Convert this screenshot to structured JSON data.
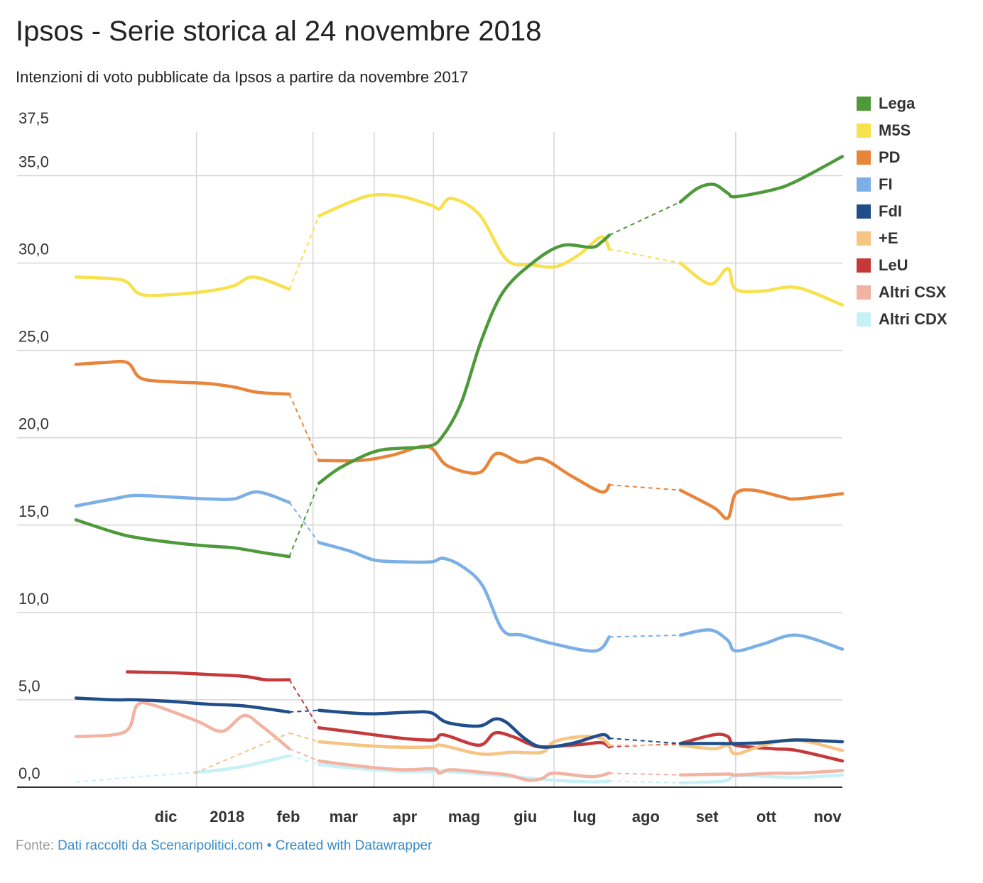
{
  "header": {
    "title": "Ipsos - Serie storica al 24 novembre 2018",
    "subtitle": "Intenzioni di voto pubblicate da Ipsos a partire da novembre 2017"
  },
  "footer": {
    "source_prefix": "Fonte:",
    "source_link": "Dati raccolti da Scenaripolitici.com",
    "separator": "•",
    "credit_link": "Created with Datawrapper"
  },
  "chart_data": {
    "type": "line",
    "title": "Ipsos - Serie storica al 24 novembre 2018",
    "subtitle": "Intenzioni di voto pubblicate da Ipsos a partire da novembre 2017",
    "xlabel": "",
    "ylabel": "",
    "ylim": [
      0,
      37.5
    ],
    "xlim": [
      "2017-11-01",
      "2018-11-24"
    ],
    "y_ticks": [
      {
        "value": 0,
        "label": "0,0"
      },
      {
        "value": 5,
        "label": "5,0"
      },
      {
        "value": 10,
        "label": "10,0"
      },
      {
        "value": 15,
        "label": "15,0"
      },
      {
        "value": 20,
        "label": "20,0"
      },
      {
        "value": 25,
        "label": "25,0"
      },
      {
        "value": 30,
        "label": "30,0"
      },
      {
        "value": 35,
        "label": "35,0"
      },
      {
        "value": 37.5,
        "label": "37,5"
      }
    ],
    "x_ticks": [
      {
        "date": "2017-12-01",
        "label": "dic"
      },
      {
        "date": "2018-01-01",
        "label": "2018"
      },
      {
        "date": "2018-02-01",
        "label": "feb"
      },
      {
        "date": "2018-03-01",
        "label": "mar"
      },
      {
        "date": "2018-04-01",
        "label": "apr"
      },
      {
        "date": "2018-05-01",
        "label": "mag"
      },
      {
        "date": "2018-06-01",
        "label": "giu"
      },
      {
        "date": "2018-07-01",
        "label": "lug"
      },
      {
        "date": "2018-08-01",
        "label": "ago"
      },
      {
        "date": "2018-09-01",
        "label": "set"
      },
      {
        "date": "2018-10-01",
        "label": "ott"
      },
      {
        "date": "2018-11-01",
        "label": "nov"
      }
    ],
    "vertical_grid_dates": [
      "2018-01-01",
      "2018-03-01",
      "2018-04-01",
      "2018-05-01",
      "2018-07-01",
      "2018-10-01"
    ],
    "grid": true,
    "legend_position": "right",
    "series": [
      {
        "name": "Lega",
        "color": "#4e9a3a",
        "points": [
          [
            "2017-11-01",
            15.3
          ],
          [
            "2017-11-20",
            14.6
          ],
          [
            "2017-12-01",
            14.3
          ],
          [
            "2017-12-20",
            14.0
          ],
          [
            "2018-01-07",
            13.8
          ],
          [
            "2018-01-20",
            13.7
          ],
          [
            "2018-02-05",
            13.4
          ],
          [
            "2018-02-17",
            13.2
          ],
          null,
          [
            "2018-03-04",
            17.4
          ],
          [
            "2018-03-15",
            18.3
          ],
          [
            "2018-04-01",
            19.2
          ],
          [
            "2018-04-14",
            19.4
          ],
          [
            "2018-04-28",
            19.5
          ],
          [
            "2018-05-05",
            20.0
          ],
          [
            "2018-05-15",
            22.0
          ],
          [
            "2018-05-25",
            25.5
          ],
          [
            "2018-06-05",
            28.3
          ],
          [
            "2018-06-20",
            30.0
          ],
          [
            "2018-07-05",
            31.0
          ],
          [
            "2018-07-20",
            30.9
          ],
          [
            "2018-07-25",
            31.2
          ],
          [
            "2018-07-29",
            31.6
          ],
          null,
          [
            "2018-09-03",
            33.5
          ],
          [
            "2018-09-12",
            34.3
          ],
          [
            "2018-09-20",
            34.5
          ],
          [
            "2018-09-27",
            34.0
          ],
          [
            "2018-10-01",
            33.8
          ],
          [
            "2018-10-20",
            34.2
          ],
          [
            "2018-11-01",
            34.7
          ],
          [
            "2018-11-24",
            36.1
          ]
        ]
      },
      {
        "name": "M5S",
        "color": "#f7e14d",
        "points": [
          [
            "2017-11-01",
            29.2
          ],
          [
            "2017-11-20",
            29.1
          ],
          [
            "2017-11-27",
            28.9
          ],
          [
            "2017-12-04",
            28.2
          ],
          [
            "2017-12-20",
            28.2
          ],
          [
            "2018-01-07",
            28.4
          ],
          [
            "2018-01-20",
            28.7
          ],
          [
            "2018-01-30",
            29.2
          ],
          [
            "2018-02-17",
            28.5
          ],
          null,
          [
            "2018-03-04",
            32.7
          ],
          [
            "2018-03-20",
            33.5
          ],
          [
            "2018-04-01",
            33.9
          ],
          [
            "2018-04-15",
            33.8
          ],
          [
            "2018-04-30",
            33.3
          ],
          [
            "2018-05-04",
            33.1
          ],
          [
            "2018-05-10",
            33.7
          ],
          [
            "2018-05-24",
            32.8
          ],
          [
            "2018-06-07",
            30.2
          ],
          [
            "2018-06-20",
            29.9
          ],
          [
            "2018-07-02",
            29.8
          ],
          [
            "2018-07-14",
            30.5
          ],
          [
            "2018-07-25",
            31.5
          ],
          [
            "2018-07-29",
            30.8
          ],
          null,
          [
            "2018-09-03",
            30.0
          ],
          [
            "2018-09-18",
            28.8
          ],
          [
            "2018-09-27",
            29.7
          ],
          [
            "2018-10-01",
            28.5
          ],
          [
            "2018-10-15",
            28.4
          ],
          [
            "2018-11-01",
            28.6
          ],
          [
            "2018-11-24",
            27.6
          ]
        ]
      },
      {
        "name": "PD",
        "color": "#e9853a",
        "points": [
          [
            "2017-11-01",
            24.2
          ],
          [
            "2017-11-15",
            24.3
          ],
          [
            "2017-11-27",
            24.3
          ],
          [
            "2017-12-04",
            23.4
          ],
          [
            "2017-12-20",
            23.2
          ],
          [
            "2018-01-07",
            23.1
          ],
          [
            "2018-01-20",
            22.9
          ],
          [
            "2018-02-01",
            22.6
          ],
          [
            "2018-02-17",
            22.5
          ],
          null,
          [
            "2018-03-04",
            18.7
          ],
          [
            "2018-03-25",
            18.7
          ],
          [
            "2018-04-10",
            19.0
          ],
          [
            "2018-04-28",
            19.5
          ],
          [
            "2018-05-08",
            18.4
          ],
          [
            "2018-05-24",
            18.0
          ],
          [
            "2018-06-02",
            19.1
          ],
          [
            "2018-06-14",
            18.6
          ],
          [
            "2018-06-25",
            18.8
          ],
          [
            "2018-07-10",
            17.8
          ],
          [
            "2018-07-25",
            16.9
          ],
          [
            "2018-07-29",
            17.3
          ],
          null,
          [
            "2018-09-03",
            17.0
          ],
          [
            "2018-09-20",
            16.0
          ],
          [
            "2018-09-27",
            15.4
          ],
          [
            "2018-10-01",
            16.8
          ],
          [
            "2018-10-10",
            17.0
          ],
          [
            "2018-10-25",
            16.6
          ],
          [
            "2018-11-01",
            16.5
          ],
          [
            "2018-11-24",
            16.8
          ]
        ]
      },
      {
        "name": "FI",
        "color": "#7bafe6",
        "points": [
          [
            "2017-11-01",
            16.1
          ],
          [
            "2017-11-20",
            16.5
          ],
          [
            "2017-12-01",
            16.7
          ],
          [
            "2017-12-20",
            16.6
          ],
          [
            "2018-01-07",
            16.5
          ],
          [
            "2018-01-20",
            16.5
          ],
          [
            "2018-02-01",
            16.9
          ],
          [
            "2018-02-17",
            16.3
          ],
          null,
          [
            "2018-03-04",
            14.0
          ],
          [
            "2018-03-20",
            13.5
          ],
          [
            "2018-04-01",
            13.0
          ],
          [
            "2018-04-15",
            12.9
          ],
          [
            "2018-04-30",
            12.9
          ],
          [
            "2018-05-06",
            13.1
          ],
          [
            "2018-05-16",
            12.6
          ],
          [
            "2018-05-26",
            11.5
          ],
          [
            "2018-06-05",
            9.0
          ],
          [
            "2018-06-15",
            8.7
          ],
          [
            "2018-07-01",
            8.2
          ],
          [
            "2018-07-22",
            7.8
          ],
          [
            "2018-07-29",
            8.6
          ],
          null,
          [
            "2018-09-03",
            8.7
          ],
          [
            "2018-09-18",
            9.0
          ],
          [
            "2018-09-27",
            8.4
          ],
          [
            "2018-10-01",
            7.8
          ],
          [
            "2018-10-15",
            8.2
          ],
          [
            "2018-11-01",
            8.7
          ],
          [
            "2018-11-24",
            7.9
          ]
        ]
      },
      {
        "name": "FdI",
        "color": "#1f4e89",
        "points": [
          [
            "2017-11-01",
            5.1
          ],
          [
            "2017-11-20",
            5.0
          ],
          [
            "2017-12-01",
            5.0
          ],
          [
            "2017-12-20",
            4.9
          ],
          [
            "2018-01-07",
            4.75
          ],
          [
            "2018-01-25",
            4.65
          ],
          [
            "2018-02-17",
            4.3
          ],
          null,
          [
            "2018-03-04",
            4.4
          ],
          [
            "2018-03-20",
            4.25
          ],
          [
            "2018-04-01",
            4.2
          ],
          [
            "2018-04-20",
            4.3
          ],
          [
            "2018-04-30",
            4.25
          ],
          [
            "2018-05-08",
            3.7
          ],
          [
            "2018-05-24",
            3.5
          ],
          [
            "2018-06-01",
            3.9
          ],
          [
            "2018-06-07",
            3.7
          ],
          [
            "2018-06-16",
            2.8
          ],
          [
            "2018-06-25",
            2.3
          ],
          [
            "2018-07-10",
            2.5
          ],
          [
            "2018-07-25",
            3.0
          ],
          [
            "2018-07-29",
            2.8
          ],
          null,
          [
            "2018-09-03",
            2.5
          ],
          [
            "2018-09-20",
            2.5
          ],
          [
            "2018-10-01",
            2.5
          ],
          [
            "2018-10-15",
            2.55
          ],
          [
            "2018-11-01",
            2.7
          ],
          [
            "2018-11-24",
            2.6
          ]
        ]
      },
      {
        "name": "+E",
        "color": "#f6c483",
        "points": [
          [
            "2017-12-31",
            0.8
          ],
          null,
          [
            "2018-02-17",
            3.1
          ],
          null,
          [
            "2018-03-04",
            2.6
          ],
          [
            "2018-03-25",
            2.4
          ],
          [
            "2018-04-10",
            2.3
          ],
          [
            "2018-04-30",
            2.3
          ],
          [
            "2018-05-05",
            2.4
          ],
          [
            "2018-05-25",
            1.9
          ],
          [
            "2018-06-10",
            2.0
          ],
          [
            "2018-06-25",
            2.0
          ],
          [
            "2018-07-01",
            2.6
          ],
          [
            "2018-07-15",
            2.9
          ],
          [
            "2018-07-25",
            2.8
          ],
          [
            "2018-07-29",
            2.4
          ],
          null,
          [
            "2018-09-03",
            2.4
          ],
          [
            "2018-09-20",
            2.2
          ],
          [
            "2018-09-27",
            2.4
          ],
          [
            "2018-10-01",
            1.9
          ],
          [
            "2018-10-15",
            2.4
          ],
          [
            "2018-11-01",
            2.7
          ],
          [
            "2018-11-24",
            2.1
          ]
        ]
      },
      {
        "name": "LeU",
        "color": "#c6393a",
        "points": [
          [
            "2017-11-27",
            6.6
          ],
          [
            "2017-12-20",
            6.55
          ],
          [
            "2018-01-07",
            6.45
          ],
          [
            "2018-01-25",
            6.35
          ],
          [
            "2018-02-05",
            6.15
          ],
          [
            "2018-02-17",
            6.15
          ],
          null,
          [
            "2018-03-04",
            3.4
          ],
          [
            "2018-03-25",
            3.1
          ],
          [
            "2018-04-15",
            2.8
          ],
          [
            "2018-05-01",
            2.7
          ],
          [
            "2018-05-06",
            3.0
          ],
          [
            "2018-05-24",
            2.4
          ],
          [
            "2018-06-01",
            3.1
          ],
          [
            "2018-06-10",
            2.9
          ],
          [
            "2018-06-18",
            2.5
          ],
          [
            "2018-06-25",
            2.3
          ],
          [
            "2018-07-15",
            2.45
          ],
          [
            "2018-07-25",
            2.55
          ],
          [
            "2018-07-29",
            2.3
          ],
          null,
          [
            "2018-09-03",
            2.5
          ],
          [
            "2018-09-20",
            3.0
          ],
          [
            "2018-09-27",
            2.9
          ],
          [
            "2018-10-01",
            2.4
          ],
          [
            "2018-10-20",
            2.2
          ],
          [
            "2018-11-01",
            2.1
          ],
          [
            "2018-11-24",
            1.5
          ]
        ]
      },
      {
        "name": "Altri CSX",
        "color": "#f2b3a3",
        "points": [
          [
            "2017-11-01",
            2.9
          ],
          [
            "2017-11-20",
            3.0
          ],
          [
            "2017-11-28",
            3.4
          ],
          [
            "2017-12-02",
            4.7
          ],
          [
            "2017-12-10",
            4.7
          ],
          [
            "2018-01-01",
            3.8
          ],
          [
            "2018-01-14",
            3.2
          ],
          [
            "2018-01-25",
            4.1
          ],
          [
            "2018-02-03",
            3.5
          ],
          [
            "2018-02-17",
            2.2
          ],
          null,
          [
            "2018-03-04",
            1.5
          ],
          [
            "2018-03-25",
            1.2
          ],
          [
            "2018-04-15",
            1.0
          ],
          [
            "2018-05-01",
            1.05
          ],
          [
            "2018-05-04",
            0.8
          ],
          [
            "2018-05-10",
            1.0
          ],
          [
            "2018-05-30",
            0.8
          ],
          [
            "2018-06-08",
            0.7
          ],
          [
            "2018-06-18",
            0.4
          ],
          [
            "2018-06-25",
            0.5
          ],
          [
            "2018-07-01",
            0.8
          ],
          [
            "2018-07-20",
            0.6
          ],
          [
            "2018-07-29",
            0.8
          ],
          null,
          [
            "2018-09-03",
            0.7
          ],
          [
            "2018-09-27",
            0.75
          ],
          [
            "2018-10-01",
            0.7
          ],
          [
            "2018-10-20",
            0.8
          ],
          [
            "2018-11-01",
            0.8
          ],
          [
            "2018-11-24",
            0.95
          ]
        ]
      },
      {
        "name": "Altri CDX",
        "color": "#c7f1f7",
        "points": [
          [
            "2017-11-01",
            0.3
          ],
          null,
          [
            "2017-12-31",
            0.85
          ],
          [
            "2018-01-10",
            0.95
          ],
          [
            "2018-01-25",
            1.2
          ],
          [
            "2018-02-17",
            1.8
          ],
          null,
          [
            "2018-03-04",
            1.3
          ],
          [
            "2018-03-20",
            1.1
          ],
          [
            "2018-04-15",
            0.9
          ],
          [
            "2018-05-05",
            0.9
          ],
          [
            "2018-05-20",
            0.8
          ],
          [
            "2018-06-10",
            0.6
          ],
          [
            "2018-07-01",
            0.4
          ],
          [
            "2018-07-20",
            0.3
          ],
          [
            "2018-07-29",
            0.35
          ],
          null,
          [
            "2018-09-03",
            0.25
          ],
          [
            "2018-09-25",
            0.35
          ],
          [
            "2018-10-01",
            0.65
          ],
          [
            "2018-10-20",
            0.6
          ],
          [
            "2018-11-01",
            0.55
          ],
          [
            "2018-11-24",
            0.7
          ]
        ]
      }
    ]
  }
}
